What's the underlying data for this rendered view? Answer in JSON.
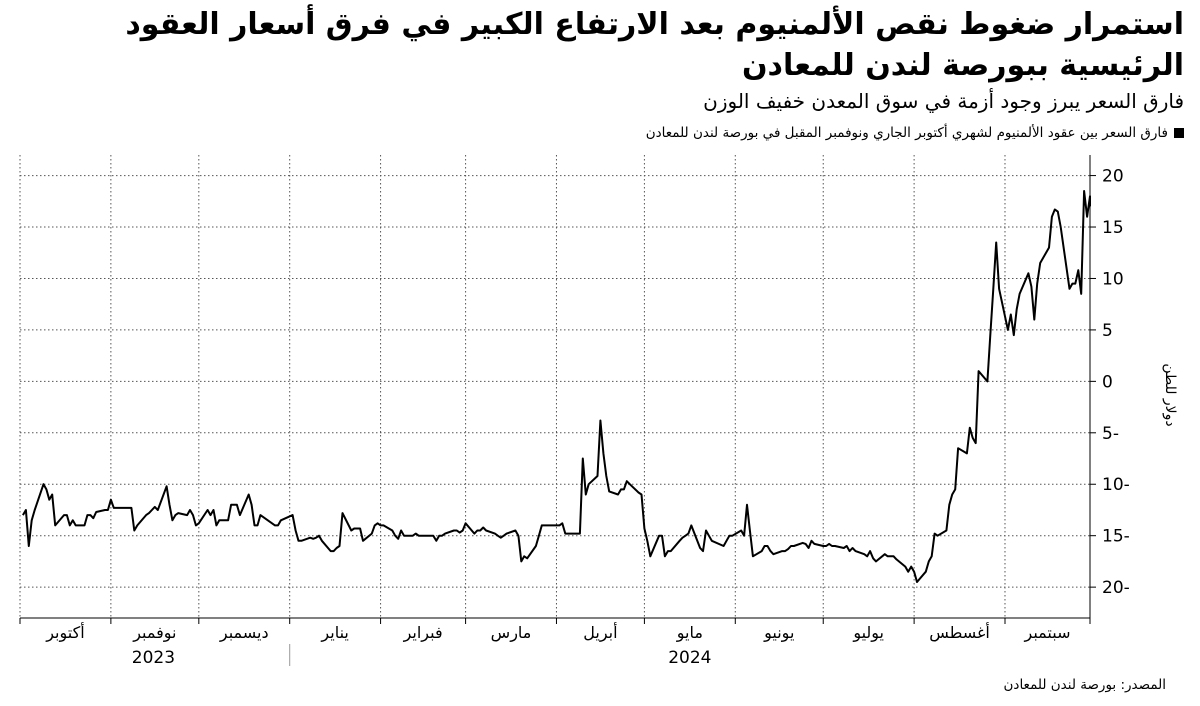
{
  "title": "استمرار ضغوط نقص الألمنيوم بعد الارتفاع الكبير في فرق أسعار العقود الرئيسية ببورصة لندن للمعادن",
  "subtitle": "فارق السعر يبرز وجود أزمة في سوق المعدن خفيف الوزن",
  "legend_label": "فارق السعر بين عقود الألمنيوم لشهري أكتوبر الجاري ونوفمبر المقبل في بورصة لندن للمعادن",
  "source": "المصدر: بورصة لندن للمعادن",
  "colors": {
    "line": "#000000",
    "grid": "#555555",
    "background": "#ffffff"
  },
  "chart_data": {
    "type": "line",
    "ylabel": "دولار للطن",
    "ylim": [
      -23,
      22
    ],
    "yticks": [
      20,
      15,
      10,
      5,
      0,
      -5,
      -10,
      -15,
      -20
    ],
    "ytick_labels": [
      "20",
      "15",
      "10",
      "5",
      "0",
      "5-",
      "10-",
      "15-",
      "20-"
    ],
    "grid": "dotted",
    "x_axis": {
      "start": "2023-10-01",
      "end": "2024-09-30",
      "months": [
        {
          "label": "أكتوبر",
          "start": "2023-10-01"
        },
        {
          "label": "نوفمبر",
          "start": "2023-11-01"
        },
        {
          "label": "ديسمبر",
          "start": "2023-12-01"
        },
        {
          "label": "يناير",
          "start": "2024-01-01"
        },
        {
          "label": "فبراير",
          "start": "2024-02-01"
        },
        {
          "label": "مارس",
          "start": "2024-03-01"
        },
        {
          "label": "أبريل",
          "start": "2024-04-01"
        },
        {
          "label": "مايو",
          "start": "2024-05-01"
        },
        {
          "label": "يونيو",
          "start": "2024-06-01"
        },
        {
          "label": "يوليو",
          "start": "2024-07-01"
        },
        {
          "label": "أغسطس",
          "start": "2024-08-01"
        },
        {
          "label": "سبتمبر",
          "start": "2024-09-01"
        }
      ],
      "years": [
        {
          "label": "2023",
          "from": "2023-10-01",
          "to": "2023-12-31"
        },
        {
          "label": "2024",
          "from": "2024-01-01",
          "to": "2024-09-30"
        }
      ]
    },
    "series": [
      {
        "points": [
          [
            "2023-10-02",
            -13
          ],
          [
            "2023-10-03",
            -12.5
          ],
          [
            "2023-10-04",
            -16
          ],
          [
            "2023-10-05",
            -13.5
          ],
          [
            "2023-10-06",
            -12.5
          ],
          [
            "2023-10-09",
            -10
          ],
          [
            "2023-10-10",
            -10.5
          ],
          [
            "2023-10-11",
            -11.5
          ],
          [
            "2023-10-12",
            -11
          ],
          [
            "2023-10-13",
            -14
          ],
          [
            "2023-10-16",
            -13
          ],
          [
            "2023-10-17",
            -13
          ],
          [
            "2023-10-18",
            -14
          ],
          [
            "2023-10-19",
            -13.5
          ],
          [
            "2023-10-20",
            -14
          ],
          [
            "2023-10-23",
            -14
          ],
          [
            "2023-10-24",
            -13
          ],
          [
            "2023-10-25",
            -13
          ],
          [
            "2023-10-26",
            -13.3
          ],
          [
            "2023-10-27",
            -12.7
          ],
          [
            "2023-10-30",
            -12.5
          ],
          [
            "2023-10-31",
            -12.5
          ],
          [
            "2023-11-01",
            -11.5
          ],
          [
            "2023-11-02",
            -12.3
          ],
          [
            "2023-11-03",
            -12.3
          ],
          [
            "2023-11-06",
            -12.3
          ],
          [
            "2023-11-07",
            -12.3
          ],
          [
            "2023-11-08",
            -12.3
          ],
          [
            "2023-11-09",
            -14.5
          ],
          [
            "2023-11-10",
            -14
          ],
          [
            "2023-11-13",
            -13
          ],
          [
            "2023-11-14",
            -12.8
          ],
          [
            "2023-11-15",
            -12.5
          ],
          [
            "2023-11-16",
            -12.2
          ],
          [
            "2023-11-17",
            -12.5
          ],
          [
            "2023-11-20",
            -10.2
          ],
          [
            "2023-11-21",
            -12
          ],
          [
            "2023-11-22",
            -13.5
          ],
          [
            "2023-11-23",
            -13
          ],
          [
            "2023-11-24",
            -12.8
          ],
          [
            "2023-11-27",
            -13
          ],
          [
            "2023-11-28",
            -12.5
          ],
          [
            "2023-11-29",
            -13
          ],
          [
            "2023-11-30",
            -14
          ],
          [
            "2023-12-01",
            -13.8
          ],
          [
            "2023-12-04",
            -12.5
          ],
          [
            "2023-12-05",
            -13
          ],
          [
            "2023-12-06",
            -12.5
          ],
          [
            "2023-12-07",
            -14
          ],
          [
            "2023-12-08",
            -13.5
          ],
          [
            "2023-12-11",
            -13.5
          ],
          [
            "2023-12-12",
            -12
          ],
          [
            "2023-12-13",
            -12
          ],
          [
            "2023-12-14",
            -12
          ],
          [
            "2023-12-15",
            -13
          ],
          [
            "2023-12-18",
            -11
          ],
          [
            "2023-12-19",
            -12
          ],
          [
            "2023-12-20",
            -14
          ],
          [
            "2023-12-21",
            -14
          ],
          [
            "2023-12-22",
            -13
          ],
          [
            "2023-12-27",
            -14
          ],
          [
            "2023-12-28",
            -14
          ],
          [
            "2023-12-29",
            -13.5
          ],
          [
            "2024-01-02",
            -13
          ],
          [
            "2024-01-03",
            -14.5
          ],
          [
            "2024-01-04",
            -15.5
          ],
          [
            "2024-01-05",
            -15.5
          ],
          [
            "2024-01-08",
            -15.2
          ],
          [
            "2024-01-09",
            -15.3
          ],
          [
            "2024-01-10",
            -15.2
          ],
          [
            "2024-01-11",
            -15
          ],
          [
            "2024-01-12",
            -15.5
          ],
          [
            "2024-01-15",
            -16.5
          ],
          [
            "2024-01-16",
            -16.5
          ],
          [
            "2024-01-17",
            -16.2
          ],
          [
            "2024-01-18",
            -16
          ],
          [
            "2024-01-19",
            -12.8
          ],
          [
            "2024-01-22",
            -14.5
          ],
          [
            "2024-01-23",
            -14.3
          ],
          [
            "2024-01-24",
            -14.3
          ],
          [
            "2024-01-25",
            -14.3
          ],
          [
            "2024-01-26",
            -15.5
          ],
          [
            "2024-01-29",
            -14.8
          ],
          [
            "2024-01-30",
            -14
          ],
          [
            "2024-01-31",
            -13.8
          ],
          [
            "2024-02-01",
            -14
          ],
          [
            "2024-02-02",
            -14
          ],
          [
            "2024-02-05",
            -14.5
          ],
          [
            "2024-02-06",
            -15
          ],
          [
            "2024-02-07",
            -15.3
          ],
          [
            "2024-02-08",
            -14.5
          ],
          [
            "2024-02-09",
            -15
          ],
          [
            "2024-02-12",
            -15
          ],
          [
            "2024-02-13",
            -14.8
          ],
          [
            "2024-02-14",
            -15
          ],
          [
            "2024-02-15",
            -15
          ],
          [
            "2024-02-16",
            -15
          ],
          [
            "2024-02-19",
            -15
          ],
          [
            "2024-02-20",
            -15.5
          ],
          [
            "2024-02-21",
            -15
          ],
          [
            "2024-02-22",
            -15
          ],
          [
            "2024-02-23",
            -14.8
          ],
          [
            "2024-02-26",
            -14.5
          ],
          [
            "2024-02-27",
            -14.5
          ],
          [
            "2024-02-28",
            -14.7
          ],
          [
            "2024-02-29",
            -14.5
          ],
          [
            "2024-03-01",
            -13.8
          ],
          [
            "2024-03-04",
            -14.8
          ],
          [
            "2024-03-05",
            -14.5
          ],
          [
            "2024-03-06",
            -14.5
          ],
          [
            "2024-03-07",
            -14.2
          ],
          [
            "2024-03-08",
            -14.5
          ],
          [
            "2024-03-11",
            -14.8
          ],
          [
            "2024-03-12",
            -15
          ],
          [
            "2024-03-13",
            -15.2
          ],
          [
            "2024-03-14",
            -15
          ],
          [
            "2024-03-15",
            -14.8
          ],
          [
            "2024-03-18",
            -14.5
          ],
          [
            "2024-03-19",
            -15
          ],
          [
            "2024-03-20",
            -17.5
          ],
          [
            "2024-03-21",
            -17
          ],
          [
            "2024-03-22",
            -17.2
          ],
          [
            "2024-03-25",
            -16
          ],
          [
            "2024-03-26",
            -15
          ],
          [
            "2024-03-27",
            -14
          ],
          [
            "2024-03-28",
            -14
          ],
          [
            "2024-04-02",
            -14
          ],
          [
            "2024-04-03",
            -13.8
          ],
          [
            "2024-04-04",
            -14.8
          ],
          [
            "2024-04-05",
            -14.8
          ],
          [
            "2024-04-08",
            -14.8
          ],
          [
            "2024-04-09",
            -14.8
          ],
          [
            "2024-04-10",
            -7.5
          ],
          [
            "2024-04-11",
            -11
          ],
          [
            "2024-04-12",
            -10
          ],
          [
            "2024-04-15",
            -9.2
          ],
          [
            "2024-04-16",
            -3.8
          ],
          [
            "2024-04-17",
            -7
          ],
          [
            "2024-04-18",
            -9.2
          ],
          [
            "2024-04-19",
            -10.7
          ],
          [
            "2024-04-22",
            -11
          ],
          [
            "2024-04-23",
            -10.5
          ],
          [
            "2024-04-24",
            -10.5
          ],
          [
            "2024-04-25",
            -9.7
          ],
          [
            "2024-04-26",
            -10
          ],
          [
            "2024-04-29",
            -10.8
          ],
          [
            "2024-04-30",
            -11
          ],
          [
            "2024-05-01",
            -14.3
          ],
          [
            "2024-05-02",
            -15.5
          ],
          [
            "2024-05-03",
            -17
          ],
          [
            "2024-05-06",
            -15
          ],
          [
            "2024-05-07",
            -15
          ],
          [
            "2024-05-08",
            -17
          ],
          [
            "2024-05-09",
            -16.5
          ],
          [
            "2024-05-10",
            -16.5
          ],
          [
            "2024-05-13",
            -15.5
          ],
          [
            "2024-05-14",
            -15.2
          ],
          [
            "2024-05-15",
            -15
          ],
          [
            "2024-05-16",
            -14.8
          ],
          [
            "2024-05-17",
            -14
          ],
          [
            "2024-05-20",
            -16.2
          ],
          [
            "2024-05-21",
            -16.5
          ],
          [
            "2024-05-22",
            -14.5
          ],
          [
            "2024-05-23",
            -15
          ],
          [
            "2024-05-24",
            -15.5
          ],
          [
            "2024-05-28",
            -16
          ],
          [
            "2024-05-29",
            -15.5
          ],
          [
            "2024-05-30",
            -15
          ],
          [
            "2024-05-31",
            -15
          ],
          [
            "2024-06-03",
            -14.5
          ],
          [
            "2024-06-04",
            -15
          ],
          [
            "2024-06-05",
            -12
          ],
          [
            "2024-06-06",
            -14.5
          ],
          [
            "2024-06-07",
            -17
          ],
          [
            "2024-06-10",
            -16.5
          ],
          [
            "2024-06-11",
            -16
          ],
          [
            "2024-06-12",
            -16
          ],
          [
            "2024-06-13",
            -16.5
          ],
          [
            "2024-06-14",
            -16.8
          ],
          [
            "2024-06-17",
            -16.5
          ],
          [
            "2024-06-18",
            -16.5
          ],
          [
            "2024-06-19",
            -16.3
          ],
          [
            "2024-06-20",
            -16
          ],
          [
            "2024-06-21",
            -16
          ],
          [
            "2024-06-24",
            -15.7
          ],
          [
            "2024-06-25",
            -15.8
          ],
          [
            "2024-06-26",
            -16.2
          ],
          [
            "2024-06-27",
            -15.5
          ],
          [
            "2024-06-28",
            -15.8
          ],
          [
            "2024-07-01",
            -16
          ],
          [
            "2024-07-02",
            -16
          ],
          [
            "2024-07-03",
            -15.8
          ],
          [
            "2024-07-04",
            -16
          ],
          [
            "2024-07-05",
            -16
          ],
          [
            "2024-07-08",
            -16.2
          ],
          [
            "2024-07-09",
            -16
          ],
          [
            "2024-07-10",
            -16.5
          ],
          [
            "2024-07-11",
            -16.2
          ],
          [
            "2024-07-12",
            -16.5
          ],
          [
            "2024-07-15",
            -16.8
          ],
          [
            "2024-07-16",
            -17
          ],
          [
            "2024-07-17",
            -16.5
          ],
          [
            "2024-07-18",
            -17.2
          ],
          [
            "2024-07-19",
            -17.5
          ],
          [
            "2024-07-22",
            -16.8
          ],
          [
            "2024-07-23",
            -17
          ],
          [
            "2024-07-24",
            -17
          ],
          [
            "2024-07-25",
            -17
          ],
          [
            "2024-07-26",
            -17.3
          ],
          [
            "2024-07-29",
            -18
          ],
          [
            "2024-07-30",
            -18.5
          ],
          [
            "2024-07-31",
            -18
          ],
          [
            "2024-08-01",
            -18.5
          ],
          [
            "2024-08-02",
            -19.5
          ],
          [
            "2024-08-05",
            -18.5
          ],
          [
            "2024-08-06",
            -17.5
          ],
          [
            "2024-08-07",
            -17
          ],
          [
            "2024-08-08",
            -14.8
          ],
          [
            "2024-08-09",
            -15
          ],
          [
            "2024-08-12",
            -14.5
          ],
          [
            "2024-08-13",
            -12
          ],
          [
            "2024-08-14",
            -11
          ],
          [
            "2024-08-15",
            -10.5
          ],
          [
            "2024-08-16",
            -6.5
          ],
          [
            "2024-08-19",
            -7
          ],
          [
            "2024-08-20",
            -4.5
          ],
          [
            "2024-08-21",
            -5.5
          ],
          [
            "2024-08-22",
            -6
          ],
          [
            "2024-08-23",
            1
          ],
          [
            "2024-08-26",
            0
          ],
          [
            "2024-08-27",
            4.5
          ],
          [
            "2024-08-28",
            9
          ],
          [
            "2024-08-29",
            13.5
          ],
          [
            "2024-08-30",
            9
          ],
          [
            "2024-09-02",
            5
          ],
          [
            "2024-09-03",
            6.5
          ],
          [
            "2024-09-04",
            4.5
          ],
          [
            "2024-09-05",
            7
          ],
          [
            "2024-09-06",
            8.5
          ],
          [
            "2024-09-09",
            10.5
          ],
          [
            "2024-09-10",
            9.2
          ],
          [
            "2024-09-11",
            6
          ],
          [
            "2024-09-12",
            9.5
          ],
          [
            "2024-09-13",
            11.5
          ],
          [
            "2024-09-16",
            13
          ],
          [
            "2024-09-17",
            16
          ],
          [
            "2024-09-18",
            16.7
          ],
          [
            "2024-09-19",
            16.5
          ],
          [
            "2024-09-20",
            15
          ],
          [
            "2024-09-23",
            9
          ],
          [
            "2024-09-24",
            9.5
          ],
          [
            "2024-09-25",
            9.5
          ],
          [
            "2024-09-26",
            10.8
          ],
          [
            "2024-09-27",
            8.5
          ],
          [
            "2024-09-28",
            18.5
          ],
          [
            "2024-09-29",
            16
          ],
          [
            "2024-09-30",
            18
          ],
          [
            "2024-09-30",
            17
          ]
        ]
      }
    ]
  }
}
